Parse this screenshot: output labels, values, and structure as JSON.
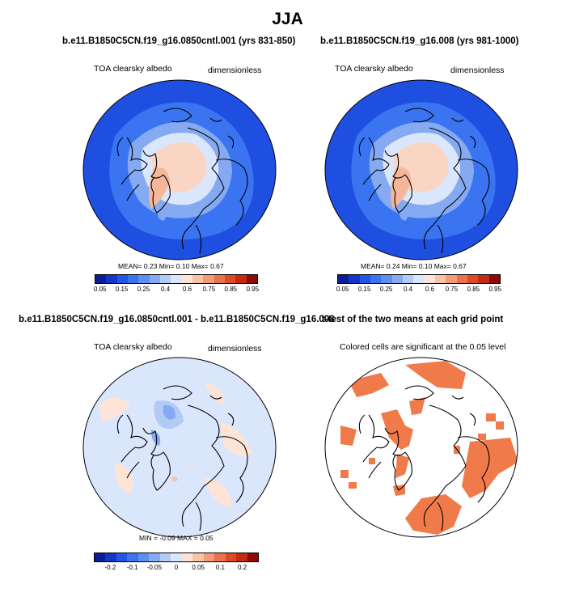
{
  "title": "JJA",
  "panels": {
    "p1": {
      "title": "b.e11.B1850C5CN.f19_g16.0850cntl.001 (yrs 831-850)",
      "left_label": "TOA clearsky albedo",
      "right_label": "dimensionless",
      "stats": "MEAN=  0.23  Min=  0.10  Max=  0.67"
    },
    "p2": {
      "title": "b.e11.B1850C5CN.f19_g16.008 (yrs 981-1000)",
      "left_label": "TOA clearsky albedo",
      "right_label": "dimensionless",
      "stats": "MEAN=  0.24  Min=  0.10  Max=  0.67"
    },
    "p3": {
      "title": "b.e11.B1850C5CN.f19_g16.0850cntl.001 - b.e11.B1850C5CN.f19_g16.008",
      "left_label": "TOA clearsky albedo",
      "right_label": "dimensionless",
      "stats": "MIN =  -0.09 MAX =  0.05"
    },
    "p4": {
      "title": "t-test of the two means at each grid point",
      "right_label": "Colored cells are significant at the 0.05 level"
    }
  },
  "colorbars": {
    "abs": {
      "colors": [
        "#0a1f96",
        "#1537c8",
        "#1f58e6",
        "#3a74f0",
        "#5d8ff2",
        "#85aaf2",
        "#b2cbf6",
        "#d9e6fb",
        "#fde4d6",
        "#f9c3a6",
        "#f29b75",
        "#ea734c",
        "#dd4a28",
        "#c52a12",
        "#8e0a05"
      ],
      "ticks": [
        "0.05",
        "0.15",
        "0.25",
        "0.4",
        "0.6",
        "0.75",
        "0.85",
        "0.95"
      ]
    },
    "diff": {
      "colors": [
        "#0a1f96",
        "#1537c8",
        "#1f58e6",
        "#3a74f0",
        "#5d8ff2",
        "#85aaf2",
        "#b2cbf6",
        "#d9e6fb",
        "#fde4d6",
        "#f9c3a6",
        "#f29b75",
        "#ea734c",
        "#dd4a28",
        "#c52a12",
        "#8e0a05"
      ],
      "ticks": [
        "-0.2",
        "-0.1",
        "-0.05",
        "0",
        "0.05",
        "0.1",
        "0.2"
      ]
    }
  },
  "colors": {
    "ocean": "#1f4fe0",
    "ice_center": "#fbd5c3",
    "diff_background": "#d9e6fb",
    "significant": "#f07a4a"
  }
}
